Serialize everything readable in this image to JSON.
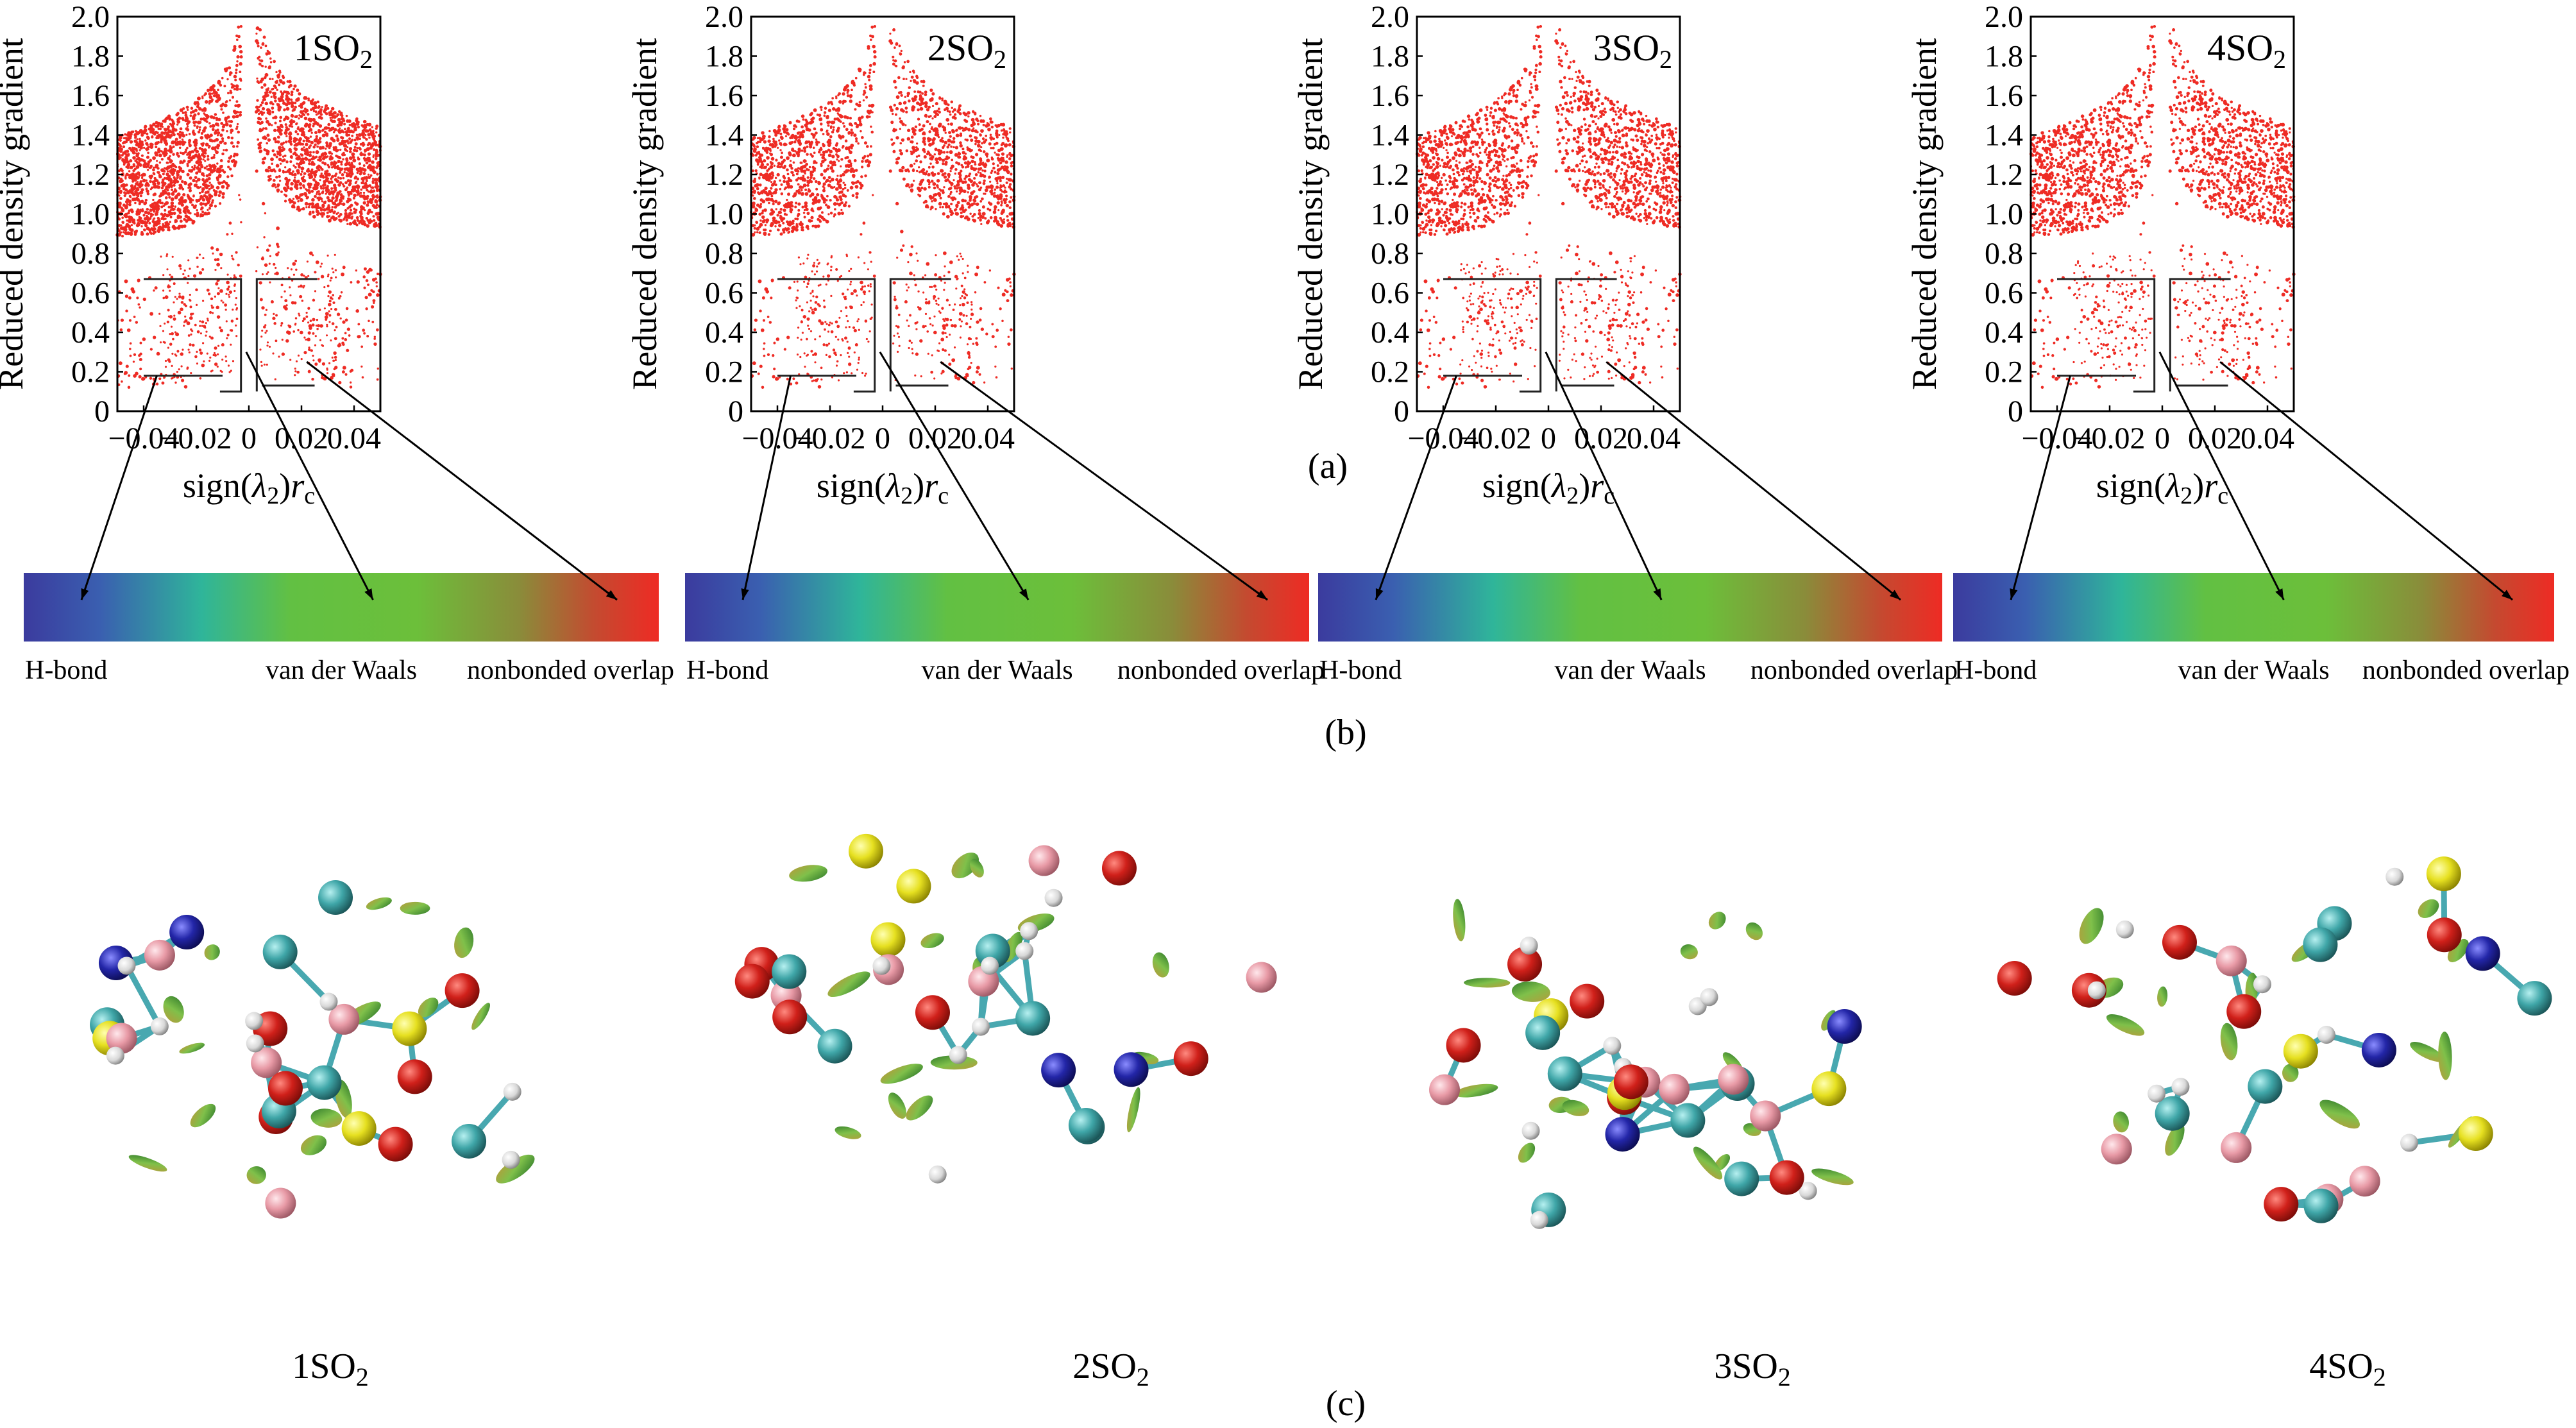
{
  "figure_labels": {
    "a": "(a)",
    "b": "(b)",
    "c": "(c)"
  },
  "colors": {
    "points": "#ee2b24",
    "hbond": "#3d3aa0",
    "vdw": "#6bbf3c",
    "overlap": "#ee2b24"
  },
  "panels": [
    {
      "label": "1SO",
      "sub": "2"
    },
    {
      "label": "2SO",
      "sub": "2"
    },
    {
      "label": "3SO",
      "sub": "2"
    },
    {
      "label": "4SO",
      "sub": "2"
    }
  ],
  "axes": {
    "ylabel": "Reduced density gradient",
    "xlabel_pre": "sign(",
    "xlabel_lambda": "λ",
    "xlabel_lsub": "2",
    "xlabel_mid": ")",
    "xlabel_r": "r",
    "xlabel_rsub": "c"
  },
  "colorbar": {
    "hbond": "H-bond",
    "vdw": "van der Waals",
    "overlap": "nonbonded overlap"
  },
  "chart_data": [
    {
      "type": "scatter",
      "title": "1SO2",
      "xlim": [
        -0.05,
        0.05
      ],
      "ylim": [
        0,
        2.0
      ],
      "xticks": [
        "-0.04",
        "-0.02",
        "0",
        "0.02",
        "0.04"
      ],
      "yticks": [
        "0",
        "0.2",
        "0.4",
        "0.6",
        "0.8",
        "1.0",
        "1.2",
        "1.4",
        "1.6",
        "1.8",
        "2.0"
      ],
      "ylabel": "Reduced density gradient",
      "xlabel": "sign(λ2)rc"
    },
    {
      "type": "scatter",
      "title": "2SO2",
      "xlim": [
        -0.05,
        0.05
      ],
      "ylim": [
        0,
        2.0
      ],
      "xticks": [
        "-0.04",
        "-0.02",
        "0",
        "0.02",
        "0.04"
      ],
      "yticks": [
        "0",
        "0.2",
        "0.4",
        "0.6",
        "0.8",
        "1.0",
        "1.2",
        "1.4",
        "1.6",
        "1.8",
        "2.0"
      ],
      "ylabel": "Reduced density gradient",
      "xlabel": "sign(λ2)rc"
    },
    {
      "type": "scatter",
      "title": "3SO2",
      "xlim": [
        -0.05,
        0.05
      ],
      "ylim": [
        0,
        2.0
      ],
      "xticks": [
        "-0.04",
        "-0.02",
        "0",
        "0.02",
        "0.04"
      ],
      "yticks": [
        "0",
        "0.2",
        "0.4",
        "0.6",
        "0.8",
        "1.0",
        "1.2",
        "1.4",
        "1.6",
        "1.8",
        "2.0"
      ],
      "ylabel": "Reduced density gradient",
      "xlabel": "sign(λ2)rc"
    },
    {
      "type": "scatter",
      "title": "4SO2",
      "xlim": [
        -0.05,
        0.05
      ],
      "ylim": [
        0,
        2.0
      ],
      "xticks": [
        "-0.04",
        "-0.02",
        "0",
        "0.02",
        "0.04"
      ],
      "yticks": [
        "0",
        "0.2",
        "0.4",
        "0.6",
        "0.8",
        "1.0",
        "1.2",
        "1.4",
        "1.6",
        "1.8",
        "2.0"
      ],
      "ylabel": "Reduced density gradient",
      "xlabel": "sign(λ2)rc"
    }
  ],
  "molecules": [
    {
      "label": "1SO",
      "sub": "2"
    },
    {
      "label": "2SO",
      "sub": "2"
    },
    {
      "label": "3SO",
      "sub": "2"
    },
    {
      "label": "4SO",
      "sub": "2"
    }
  ]
}
